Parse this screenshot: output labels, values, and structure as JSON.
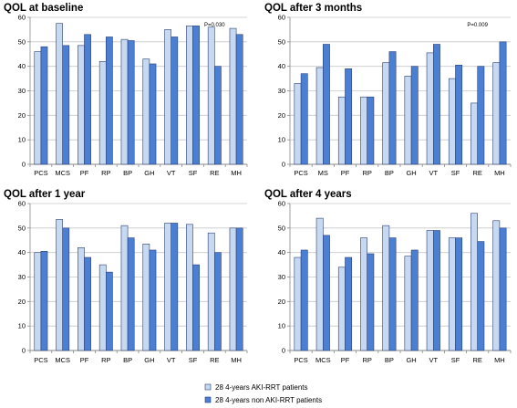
{
  "chart_data": [
    {
      "type": "bar",
      "title": "QOL at baseline",
      "categories": [
        "PCS",
        "MCS",
        "PF",
        "RP",
        "BP",
        "GH",
        "VT",
        "SF",
        "RE",
        "MH"
      ],
      "series": [
        {
          "name": "28 4-years AKI-RRT patients",
          "values": [
            46,
            57.5,
            48.5,
            42,
            51,
            43,
            55,
            56.5,
            56,
            55.5
          ]
        },
        {
          "name": "28 4-years non AKI-RRT patients",
          "values": [
            48,
            48.5,
            53,
            52,
            50.5,
            41,
            52,
            56.5,
            40,
            53
          ]
        }
      ],
      "ylim": [
        0,
        60
      ],
      "yticks": [
        0,
        10,
        20,
        30,
        40,
        50,
        60
      ],
      "annotation": {
        "text": "P=0.030",
        "category": "RE"
      }
    },
    {
      "type": "bar",
      "title": "QOL after 3 months",
      "categories": [
        "PCS",
        "MS",
        "PF",
        "RP",
        "BP",
        "GH",
        "VT",
        "SF",
        "RE",
        "MH"
      ],
      "series": [
        {
          "name": "28 4-years AKI-RRT patients",
          "values": [
            33,
            39.5,
            27.5,
            27.5,
            41.5,
            36,
            45.5,
            35,
            25,
            41.5
          ]
        },
        {
          "name": "28 4-years non AKI-RRT patients",
          "values": [
            37,
            49,
            39,
            27.5,
            46,
            40,
            49,
            40.5,
            40,
            50
          ]
        }
      ],
      "ylim": [
        0,
        60
      ],
      "yticks": [
        0,
        10,
        20,
        30,
        40,
        50,
        60
      ],
      "annotation": {
        "text": "P=0.009",
        "category": "RE"
      }
    },
    {
      "type": "bar",
      "title": "QOL after 1 year",
      "categories": [
        "PCS",
        "MCS",
        "PF",
        "RP",
        "BP",
        "GH",
        "VT",
        "SF",
        "RE",
        "MH"
      ],
      "series": [
        {
          "name": "28 4-years AKI-RRT patients",
          "values": [
            40,
            53.5,
            42,
            35,
            51,
            43.5,
            52,
            51.5,
            48,
            50
          ]
        },
        {
          "name": "28 4-years non AKI-RRT patients",
          "values": [
            40.5,
            50,
            38,
            32,
            46,
            41,
            52,
            35,
            40,
            50
          ]
        }
      ],
      "ylim": [
        0,
        60
      ],
      "yticks": [
        0,
        10,
        20,
        30,
        40,
        50,
        60
      ]
    },
    {
      "type": "bar",
      "title": "QOL after 4 years",
      "categories": [
        "PCS",
        "MCS",
        "PF",
        "RP",
        "BP",
        "GH",
        "VT",
        "SF",
        "RE",
        "MH"
      ],
      "series": [
        {
          "name": "28 4-years AKI-RRT patients",
          "values": [
            38,
            54,
            34,
            46,
            51,
            38.5,
            49,
            46,
            56,
            53
          ]
        },
        {
          "name": "28 4-years non AKI-RRT patients",
          "values": [
            41,
            47,
            38,
            39.5,
            46,
            41,
            49,
            46,
            44.5,
            50
          ]
        }
      ],
      "ylim": [
        0,
        60
      ],
      "yticks": [
        0,
        10,
        20,
        30,
        40,
        50,
        60
      ]
    }
  ],
  "legend": {
    "items": [
      {
        "label": "28 4-years AKI-RRT patients",
        "color": "#c7d9f0"
      },
      {
        "label": "28 4-years non AKI-RRT patients",
        "color": "#4a7fd4"
      }
    ]
  },
  "colors": {
    "series1": "#c7d9f0",
    "series2": "#4a7fd4",
    "stroke": "#2b3f73"
  }
}
